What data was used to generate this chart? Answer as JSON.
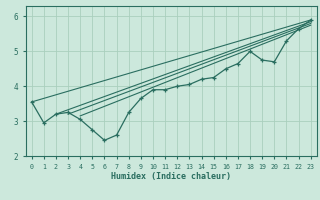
{
  "xlabel": "Humidex (Indice chaleur)",
  "ylabel": "",
  "xlim": [
    -0.5,
    23.5
  ],
  "ylim": [
    2,
    6.3
  ],
  "background_color": "#cce8dc",
  "grid_color": "#aacfbe",
  "line_color": "#2a6e60",
  "x_ticks": [
    0,
    1,
    2,
    3,
    4,
    5,
    6,
    7,
    8,
    9,
    10,
    11,
    12,
    13,
    14,
    15,
    16,
    17,
    18,
    19,
    20,
    21,
    22,
    23
  ],
  "y_ticks": [
    2,
    3,
    4,
    5,
    6
  ],
  "marker_line_x": [
    0,
    1,
    2,
    3,
    4,
    5,
    6,
    7,
    8,
    9,
    10,
    11,
    12,
    13,
    14,
    15,
    16,
    17,
    18,
    19,
    20,
    21,
    22,
    23
  ],
  "marker_line_y": [
    3.55,
    2.95,
    3.2,
    3.25,
    3.05,
    2.75,
    2.45,
    2.6,
    3.25,
    3.65,
    3.9,
    3.9,
    4.0,
    4.05,
    4.2,
    4.25,
    4.5,
    4.65,
    5.0,
    4.75,
    4.7,
    5.3,
    5.65,
    5.9
  ],
  "straight_lines": [
    [
      [
        0,
        23
      ],
      [
        3.55,
        5.9
      ]
    ],
    [
      [
        2,
        23
      ],
      [
        3.2,
        5.85
      ]
    ],
    [
      [
        3,
        23
      ],
      [
        3.2,
        5.8
      ]
    ],
    [
      [
        4,
        23
      ],
      [
        3.15,
        5.75
      ]
    ]
  ]
}
